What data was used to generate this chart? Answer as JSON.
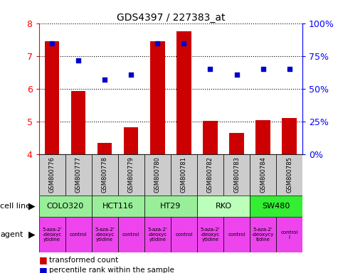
{
  "title": "GDS4397 / 227383_at",
  "samples": [
    "GSM800776",
    "GSM800777",
    "GSM800778",
    "GSM800779",
    "GSM800780",
    "GSM800781",
    "GSM800782",
    "GSM800783",
    "GSM800784",
    "GSM800785"
  ],
  "bar_values": [
    7.45,
    5.93,
    4.35,
    4.82,
    7.45,
    7.75,
    5.02,
    4.65,
    5.05,
    5.1
  ],
  "dot_values": [
    7.38,
    6.87,
    6.28,
    6.42,
    7.38,
    7.38,
    6.6,
    6.42,
    6.6,
    6.6
  ],
  "ylim": [
    4.0,
    8.0
  ],
  "yticks": [
    4,
    5,
    6,
    7,
    8
  ],
  "bar_color": "#cc0000",
  "dot_color": "#0000cc",
  "bar_bottom": 4.0,
  "cell_line_data": [
    {
      "label": "COLO320",
      "start": 0,
      "end": 2,
      "color": "#99ee99"
    },
    {
      "label": "HCT116",
      "start": 2,
      "end": 4,
      "color": "#99ee99"
    },
    {
      "label": "HT29",
      "start": 4,
      "end": 6,
      "color": "#99ee99"
    },
    {
      "label": "RKO",
      "start": 6,
      "end": 8,
      "color": "#bbffbb"
    },
    {
      "label": "SW480",
      "start": 8,
      "end": 10,
      "color": "#33ee33"
    }
  ],
  "agent_data": [
    {
      "label": "5-aza-2'\n-deoxyc\nytidine",
      "start": 0,
      "end": 1,
      "color": "#ee44ee"
    },
    {
      "label": "control",
      "start": 1,
      "end": 2,
      "color": "#ee44ee"
    },
    {
      "label": "5-aza-2'\n-deoxyc\nytidine",
      "start": 2,
      "end": 3,
      "color": "#ee44ee"
    },
    {
      "label": "control",
      "start": 3,
      "end": 4,
      "color": "#ee44ee"
    },
    {
      "label": "5-aza-2'\n-deoxyc\nytidine",
      "start": 4,
      "end": 5,
      "color": "#ee44ee"
    },
    {
      "label": "control",
      "start": 5,
      "end": 6,
      "color": "#ee44ee"
    },
    {
      "label": "5-aza-2'\n-deoxyc\nytidine",
      "start": 6,
      "end": 7,
      "color": "#ee44ee"
    },
    {
      "label": "control",
      "start": 7,
      "end": 8,
      "color": "#ee44ee"
    },
    {
      "label": "5-aza-2'\n-deoxycy\ntidine",
      "start": 8,
      "end": 9,
      "color": "#ee44ee"
    },
    {
      "label": "control\nl",
      "start": 9,
      "end": 10,
      "color": "#ee44ee"
    }
  ],
  "legend_bar": "transformed count",
  "legend_dot": "percentile rank within the sample",
  "cell_line_label": "cell line",
  "agent_label": "agent",
  "sample_bg_color": "#cccccc",
  "pct_labels": [
    "0%",
    "25%",
    "50%",
    "75%",
    "100%"
  ]
}
